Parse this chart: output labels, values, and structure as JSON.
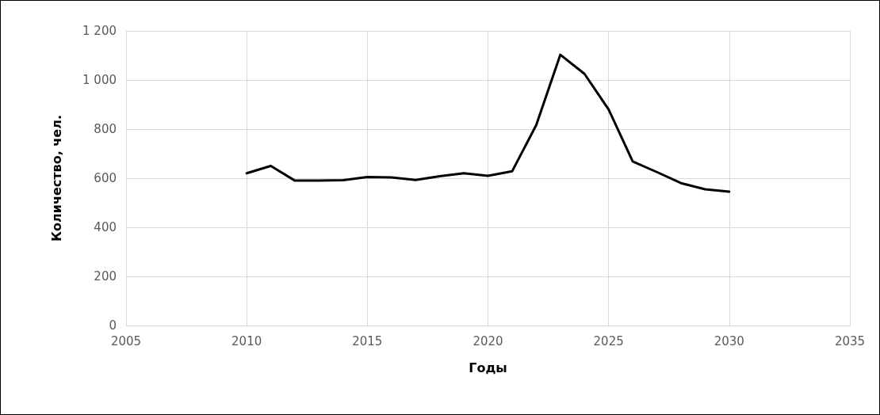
{
  "chart_data": {
    "type": "line",
    "xlabel": "Годы",
    "ylabel": "Количество, чел.",
    "x": [
      2010,
      2011,
      2012,
      2013,
      2014,
      2015,
      2016,
      2017,
      2018,
      2019,
      2020,
      2021,
      2022,
      2023,
      2024,
      2025,
      2026,
      2027,
      2028,
      2029,
      2030
    ],
    "series": [
      {
        "color": "#000000",
        "values": [
          620,
          650,
          590,
          590,
          592,
          605,
          603,
          593,
          608,
          620,
          610,
          628,
          816,
          1103,
          1025,
          880,
          668,
          625,
          580,
          555,
          545
        ]
      }
    ],
    "xlim": [
      2005,
      2035
    ],
    "xticks": [
      2005,
      2010,
      2015,
      2020,
      2025,
      2030,
      2035
    ],
    "ylim": [
      0,
      1200
    ],
    "yticks": [
      0,
      200,
      400,
      600,
      800,
      {
        "value": 1000,
        "label": "1 000"
      },
      {
        "value": 1200,
        "label": "1 200"
      }
    ],
    "grid": true,
    "marker": "none",
    "line_style": "solid"
  }
}
